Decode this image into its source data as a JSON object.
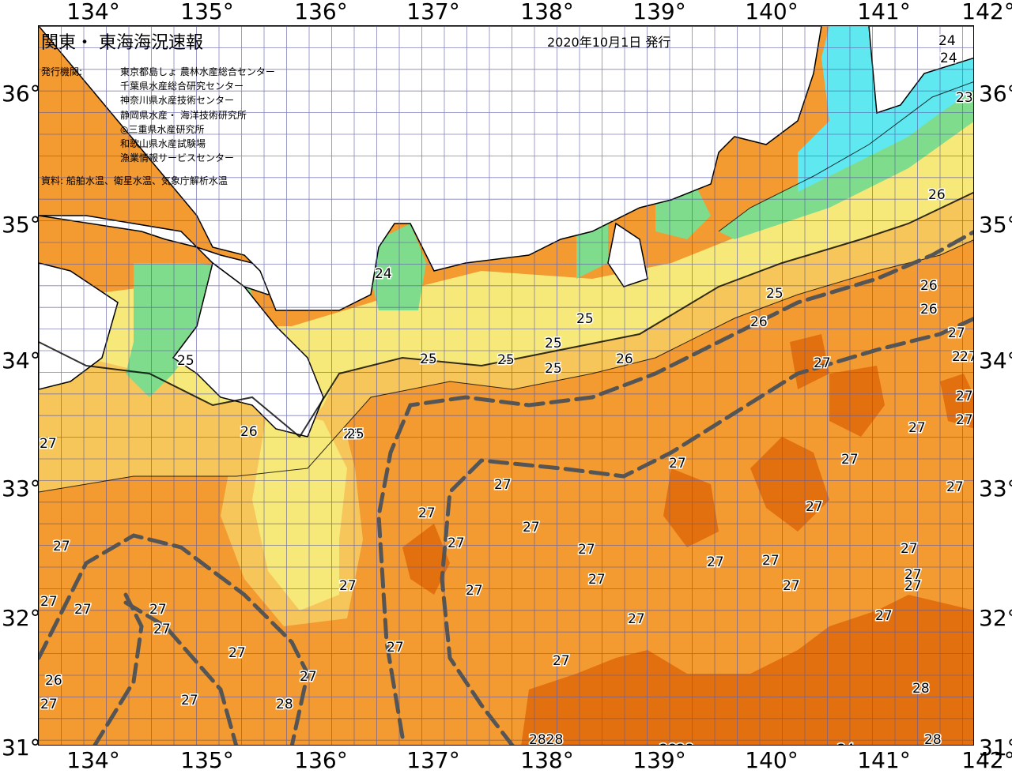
{
  "header": {
    "title": "関東・ 東海海況速報",
    "issue_date": "2020年10月1日 発行",
    "issuer_label": "発行機関:",
    "issuers": [
      "東京都島しょ 農林水産総合センター",
      "千葉県水産総合研究センター",
      "神奈川県水産技術センター",
      "静岡県水産・ 海洋技術研究所",
      "◎三重県水産研究所",
      "和歌山県水産試験場",
      "漁業情報サービスセンター"
    ],
    "source": "資料: 船舶水温、衛星水温、気象庁解析水温"
  },
  "axes": {
    "longitudes": [
      "134°",
      "135°",
      "136°",
      "137°",
      "138°",
      "139°",
      "140°",
      "141°",
      "142°"
    ],
    "latitudes": [
      "36°",
      "35°",
      "34°",
      "33°",
      "32°",
      "31°"
    ]
  },
  "colors": {
    "land": "#ffffff",
    "temp_23": "#5fe8f0",
    "temp_24": "#7fdc8c",
    "temp_25": "#f7e87a",
    "temp_26": "#f6c65a",
    "temp_27": "#f39a30",
    "temp_28": "#e3700f",
    "grid": "#5a5aa8",
    "kuroshio_axis": "#555555"
  },
  "contour_labels": [
    {
      "text": "24"
    },
    {
      "text": "24"
    },
    {
      "text": "23"
    },
    {
      "text": "26"
    },
    {
      "text": "26"
    },
    {
      "text": "26"
    },
    {
      "text": "27"
    },
    {
      "text": "27"
    },
    {
      "text": "27"
    },
    {
      "text": "27"
    },
    {
      "text": "27"
    },
    {
      "text": "27"
    },
    {
      "text": "27"
    },
    {
      "text": "27"
    },
    {
      "text": "27"
    },
    {
      "text": "24"
    },
    {
      "text": "25"
    },
    {
      "text": "25"
    },
    {
      "text": "25"
    },
    {
      "text": "25"
    },
    {
      "text": "25"
    },
    {
      "text": "25"
    },
    {
      "text": "26"
    },
    {
      "text": "26"
    },
    {
      "text": "26"
    },
    {
      "text": "27"
    },
    {
      "text": "27"
    },
    {
      "text": "27"
    },
    {
      "text": "27"
    },
    {
      "text": "27"
    },
    {
      "text": "27"
    },
    {
      "text": "27"
    },
    {
      "text": "27"
    },
    {
      "text": "27"
    },
    {
      "text": "27"
    },
    {
      "text": "27"
    },
    {
      "text": "27"
    },
    {
      "text": "27"
    },
    {
      "text": "27"
    },
    {
      "text": "27"
    },
    {
      "text": "27"
    },
    {
      "text": "27"
    },
    {
      "text": "27"
    },
    {
      "text": "27"
    },
    {
      "text": "27"
    },
    {
      "text": "27"
    },
    {
      "text": "27"
    },
    {
      "text": "27"
    },
    {
      "text": "28"
    },
    {
      "text": "28"
    },
    {
      "text": "28"
    },
    {
      "text": "2828"
    },
    {
      "text": "2828"
    },
    {
      "text": "24"
    },
    {
      "text": "25"
    },
    {
      "text": "26"
    },
    {
      "text": "25"
    },
    {
      "text": "27"
    },
    {
      "text": "27"
    },
    {
      "text": "27"
    },
    {
      "text": "27"
    },
    {
      "text": "27"
    },
    {
      "text": "27"
    },
    {
      "text": "27"
    },
    {
      "text": "26"
    }
  ]
}
